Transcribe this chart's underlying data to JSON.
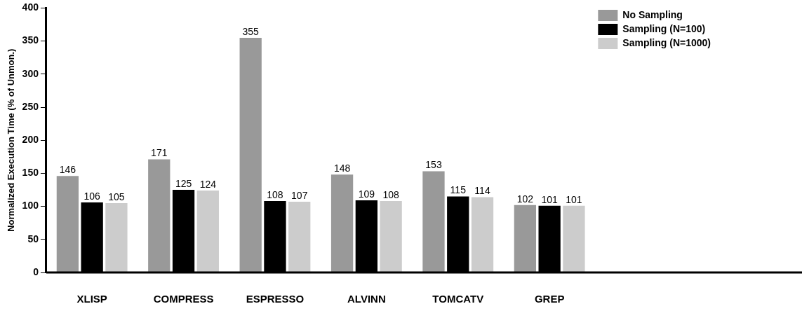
{
  "chart_data": {
    "type": "bar",
    "ylabel": "Normalized Execution Time (% of Unmon.)",
    "categories": [
      "XLISP",
      "COMPRESS",
      "ESPRESSO",
      "ALVINN",
      "TOMCATV",
      "GREP"
    ],
    "series": [
      {
        "name": "No Sampling",
        "color": "#999999",
        "values": [
          146,
          171,
          355,
          148,
          153,
          102
        ]
      },
      {
        "name": "Sampling (N=100)",
        "color": "#000000",
        "values": [
          106,
          125,
          108,
          109,
          115,
          101
        ]
      },
      {
        "name": "Sampling (N=1000)",
        "color": "#cccccc",
        "values": [
          105,
          124,
          107,
          108,
          114,
          101
        ]
      }
    ],
    "ylim": [
      0,
      400
    ],
    "yticks": [
      0,
      50,
      100,
      150,
      200,
      250,
      300,
      350,
      400
    ],
    "grid": false,
    "legend": "top right",
    "data_labels": true
  }
}
